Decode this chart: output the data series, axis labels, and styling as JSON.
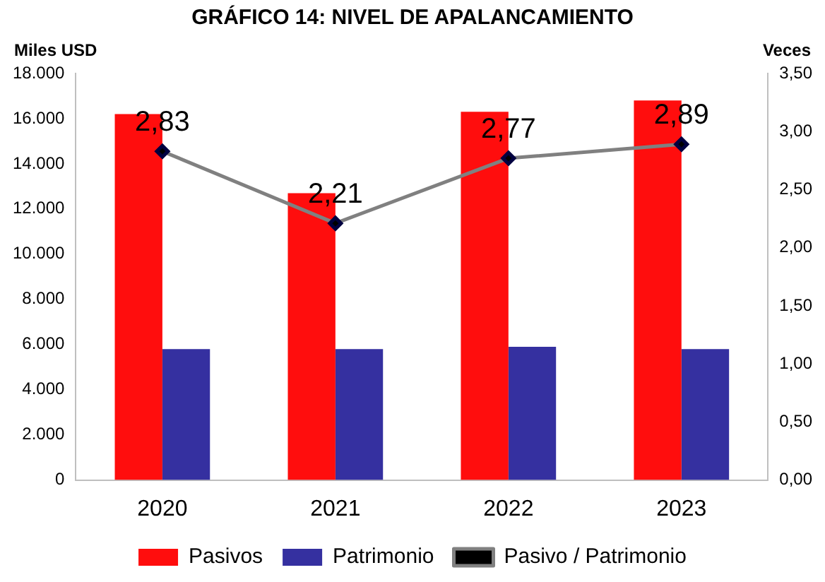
{
  "chart_data": {
    "type": "bar",
    "title": "GRÁFICO 14: NIVEL DE APALANCAMIENTO",
    "ylabel": "Miles USD",
    "y2label": "Veces",
    "categories": [
      "2020",
      "2021",
      "2022",
      "2023"
    ],
    "series": [
      {
        "name": "Pasivos",
        "color": "#ff0d0d",
        "values": [
          16200,
          12700,
          16300,
          16800
        ]
      },
      {
        "name": "Patrimonio",
        "color": "#3530a0",
        "values": [
          5800,
          5800,
          5900,
          5800
        ]
      },
      {
        "name": "Pasivo / Patrimonio",
        "type": "line",
        "axis": "y2",
        "color": "#808080",
        "marker": "diamond",
        "values": [
          2.83,
          2.21,
          2.77,
          2.89
        ],
        "value_labels": [
          "2,83",
          "2,21",
          "2,77",
          "2,89"
        ]
      }
    ],
    "ylim": [
      0,
      18000
    ],
    "yticks": [
      {
        "value": 0,
        "label": "0"
      },
      {
        "value": 2000,
        "label": "2.000"
      },
      {
        "value": 4000,
        "label": "4.000"
      },
      {
        "value": 6000,
        "label": "6.000"
      },
      {
        "value": 8000,
        "label": "8.000"
      },
      {
        "value": 10000,
        "label": "10.000"
      },
      {
        "value": 12000,
        "label": "12.000"
      },
      {
        "value": 14000,
        "label": "14.000"
      },
      {
        "value": 16000,
        "label": "16.000"
      },
      {
        "value": 18000,
        "label": "18.000"
      }
    ],
    "y2lim": [
      0,
      3.5
    ],
    "y2ticks": [
      {
        "value": 0,
        "label": "0,00"
      },
      {
        "value": 0.5,
        "label": "0,50"
      },
      {
        "value": 1,
        "label": "1,00"
      },
      {
        "value": 1.5,
        "label": "1,50"
      },
      {
        "value": 2,
        "label": "2,00"
      },
      {
        "value": 2.5,
        "label": "2,50"
      },
      {
        "value": 3,
        "label": "3,00"
      },
      {
        "value": 3.5,
        "label": "3,50"
      }
    ],
    "grid": false,
    "legend": "bottom"
  }
}
